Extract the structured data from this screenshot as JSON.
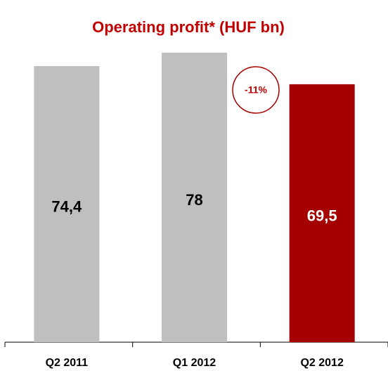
{
  "chart_data": {
    "type": "bar",
    "title": "Operating profit* (HUF bn)",
    "categories": [
      "Q2 2011",
      "Q1 2012",
      "Q2 2012"
    ],
    "values": [
      74.4,
      78,
      69.5
    ],
    "value_labels": [
      "74,4",
      "78",
      "69,5"
    ],
    "colors": [
      "#bfbfbf",
      "#bfbfbf",
      "#a50000"
    ],
    "value_label_colors": [
      "#000000",
      "#000000",
      "#ffffff"
    ],
    "annotation": "-11%"
  }
}
